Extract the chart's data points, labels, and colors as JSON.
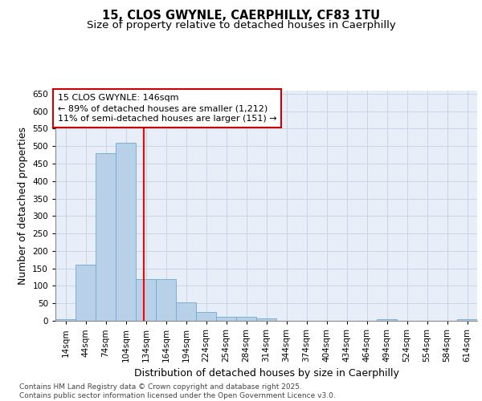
{
  "title": "15, CLOS GWYNLE, CAERPHILLY, CF83 1TU",
  "subtitle": "Size of property relative to detached houses in Caerphilly",
  "xlabel": "Distribution of detached houses by size in Caerphilly",
  "ylabel": "Number of detached properties",
  "bin_labels": [
    "14sqm",
    "44sqm",
    "74sqm",
    "104sqm",
    "134sqm",
    "164sqm",
    "194sqm",
    "224sqm",
    "254sqm",
    "284sqm",
    "314sqm",
    "344sqm",
    "374sqm",
    "404sqm",
    "434sqm",
    "464sqm",
    "494sqm",
    "524sqm",
    "554sqm",
    "584sqm",
    "614sqm"
  ],
  "bin_edges": [
    14,
    44,
    74,
    104,
    134,
    164,
    194,
    224,
    254,
    284,
    314,
    344,
    374,
    404,
    434,
    464,
    494,
    524,
    554,
    584,
    614
  ],
  "bar_values": [
    5,
    160,
    480,
    510,
    120,
    120,
    52,
    25,
    12,
    12,
    8,
    0,
    0,
    0,
    0,
    0,
    5,
    0,
    0,
    0,
    5
  ],
  "bar_color": "#b8d0e8",
  "bar_edge_color": "#6aaad4",
  "grid_color": "#c8d4e8",
  "background_color": "#e8eef8",
  "red_line_x": 146,
  "annotation_line1": "15 CLOS GWYNLE: 146sqm",
  "annotation_line2": "← 89% of detached houses are smaller (1,212)",
  "annotation_line3": "11% of semi-detached houses are larger (151) →",
  "annotation_box_color": "#cc0000",
  "ylim": [
    0,
    660
  ],
  "yticks": [
    0,
    50,
    100,
    150,
    200,
    250,
    300,
    350,
    400,
    450,
    500,
    550,
    600,
    650
  ],
  "footer_text": "Contains HM Land Registry data © Crown copyright and database right 2025.\nContains public sector information licensed under the Open Government Licence v3.0.",
  "title_fontsize": 10.5,
  "subtitle_fontsize": 9.5,
  "axis_label_fontsize": 9,
  "tick_fontsize": 7.5,
  "annotation_fontsize": 8,
  "footer_fontsize": 6.5
}
